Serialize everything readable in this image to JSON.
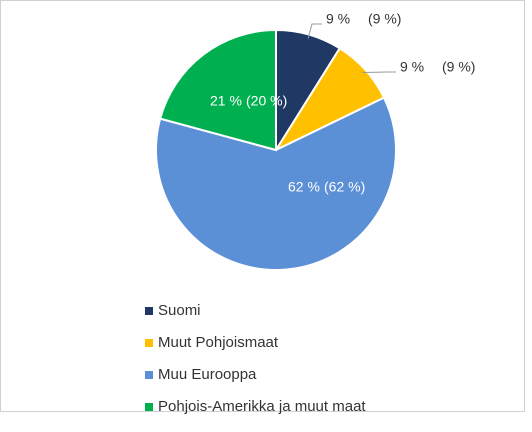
{
  "chart_data": {
    "type": "pie",
    "categories": [
      "Suomi",
      "Muut Pohjoismaat",
      "Muu Eurooppa",
      "Pohjois-Amerikka ja muut maat"
    ],
    "values": [
      9,
      9,
      62,
      21
    ],
    "value_labels": [
      "9 %",
      "9 %",
      "62 %",
      "21 %"
    ],
    "prior_values": [
      9,
      9,
      62,
      20
    ],
    "prior_value_labels": [
      "(9 %)",
      "(9 %)",
      "(62 %)",
      "(20 %)"
    ],
    "colors": [
      "#203864",
      "#ffc000",
      "#5b8fd6",
      "#00b050"
    ]
  }
}
